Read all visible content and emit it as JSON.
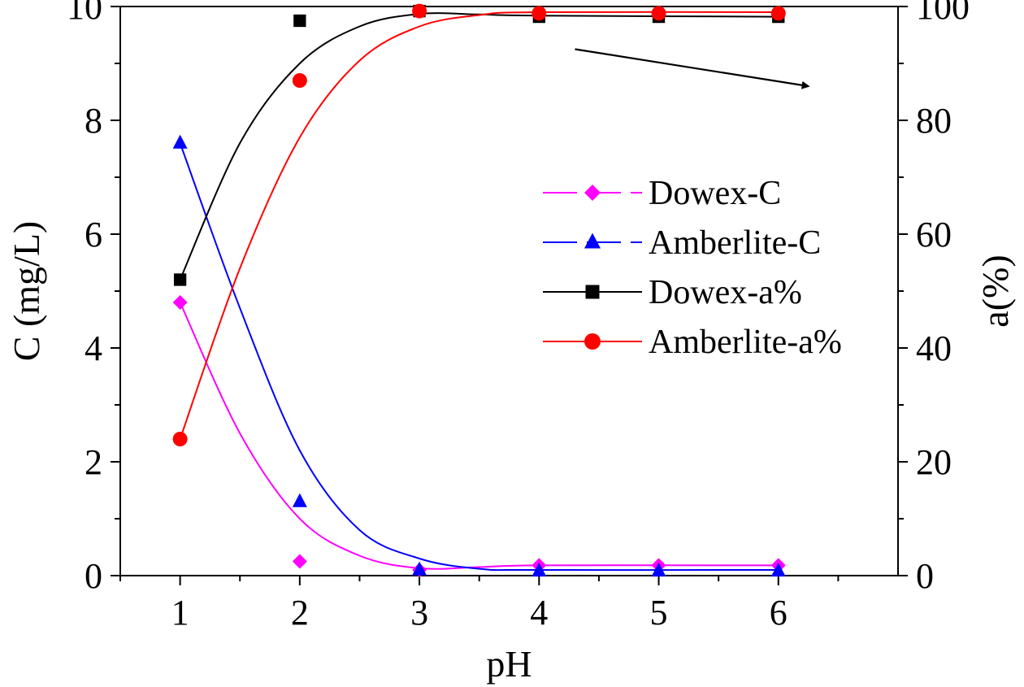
{
  "chart_data": {
    "type": "line",
    "xlabel": "pH",
    "ylabel": "C (mg/L)",
    "y2label": "a(%)",
    "xlim": [
      0.5,
      7.0
    ],
    "ylim": [
      0,
      10
    ],
    "y2lim": [
      0,
      100
    ],
    "x_ticks": [
      "1",
      "2",
      "3",
      "4",
      "5",
      "6"
    ],
    "y_ticks": [
      "0",
      "2",
      "4",
      "6",
      "8",
      "10"
    ],
    "y2_ticks": [
      "0",
      "20",
      "40",
      "60",
      "80",
      "100"
    ],
    "grid": false,
    "legend_position": "center-right",
    "x": [
      1,
      2,
      3,
      4,
      5,
      6
    ],
    "series": [
      {
        "name": "Dowex-C",
        "axis": "left",
        "marker": "diamond",
        "line_style": "dashed",
        "color": "#ff00ff",
        "values": [
          4.8,
          0.25,
          0.1,
          0.18,
          0.18,
          0.18
        ],
        "fit": [
          [
            1,
            4.8
          ],
          [
            1.5,
            2.5
          ],
          [
            2,
            1.0
          ],
          [
            2.5,
            0.35
          ],
          [
            3,
            0.13
          ],
          [
            3.5,
            0.15
          ],
          [
            4,
            0.18
          ],
          [
            6,
            0.18
          ]
        ]
      },
      {
        "name": "Amberlite-C",
        "axis": "left",
        "marker": "triangle",
        "line_style": "dashed",
        "color": "#0000ff",
        "values": [
          7.6,
          1.3,
          0.1,
          0.08,
          0.08,
          0.08
        ],
        "fit": [
          [
            1,
            7.6
          ],
          [
            1.5,
            4.7
          ],
          [
            2,
            2.2
          ],
          [
            2.5,
            0.8
          ],
          [
            3,
            0.3
          ],
          [
            3.5,
            0.12
          ],
          [
            4,
            0.1
          ],
          [
            6,
            0.1
          ]
        ]
      },
      {
        "name": "Dowex-a%",
        "axis": "right",
        "marker": "square",
        "line_style": "solid",
        "color": "#000000",
        "values": [
          52,
          97.5,
          99.2,
          98.2,
          98.2,
          98.2
        ],
        "fit": [
          [
            1,
            52
          ],
          [
            1.5,
            76
          ],
          [
            2,
            90
          ],
          [
            2.5,
            96.5
          ],
          [
            3,
            98.7
          ],
          [
            3.5,
            98.6
          ],
          [
            4,
            98.4
          ],
          [
            6,
            98.2
          ]
        ]
      },
      {
        "name": "Amberlite-a%",
        "axis": "right",
        "marker": "circle",
        "line_style": "solid",
        "color": "#ff0000",
        "values": [
          24,
          87,
          99.2,
          98.8,
          98.8,
          98.8
        ],
        "fit": [
          [
            1,
            24
          ],
          [
            1.5,
            54
          ],
          [
            2,
            77
          ],
          [
            2.5,
            90.5
          ],
          [
            3,
            96.5
          ],
          [
            3.5,
            98.5
          ],
          [
            4,
            99.0
          ],
          [
            6,
            99.0
          ]
        ]
      }
    ],
    "annotations": [
      {
        "type": "arrow",
        "from": [
          4.3,
          92.5
        ],
        "to": [
          6.25,
          86.0
        ],
        "axis": "right"
      }
    ]
  }
}
